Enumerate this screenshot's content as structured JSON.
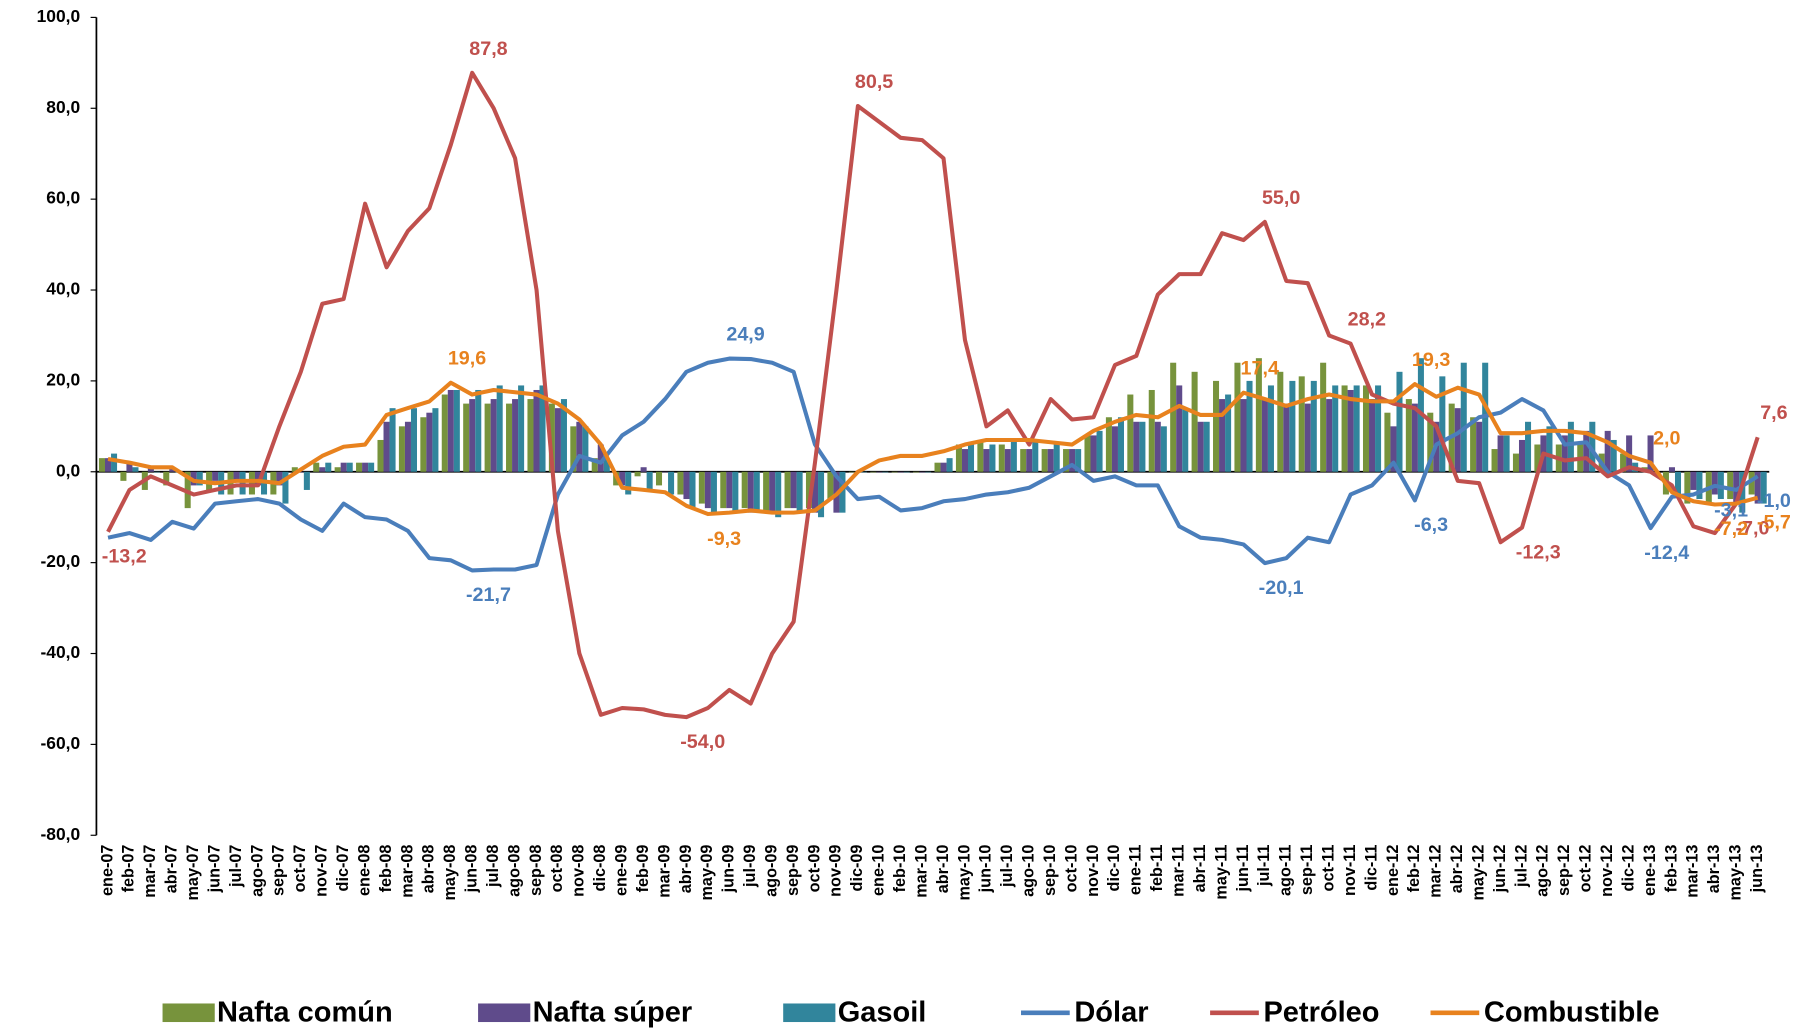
{
  "chart_data": {
    "type": "bar",
    "categories": [
      "ene-07",
      "feb-07",
      "mar-07",
      "abr-07",
      "may-07",
      "jun-07",
      "jul-07",
      "ago-07",
      "sep-07",
      "oct-07",
      "nov-07",
      "dic-07",
      "ene-08",
      "feb-08",
      "mar-08",
      "abr-08",
      "may-08",
      "jun-08",
      "jul-08",
      "ago-08",
      "sep-08",
      "oct-08",
      "nov-08",
      "dic-08",
      "ene-09",
      "feb-09",
      "mar-09",
      "abr-09",
      "may-09",
      "jun-09",
      "jul-09",
      "ago-09",
      "sep-09",
      "oct-09",
      "nov-09",
      "dic-09",
      "ene-10",
      "feb-10",
      "mar-10",
      "abr-10",
      "may-10",
      "jun-10",
      "jul-10",
      "ago-10",
      "sep-10",
      "oct-10",
      "nov-10",
      "dic-10",
      "ene-11",
      "feb-11",
      "mar-11",
      "abr-11",
      "may-11",
      "jun-11",
      "jul-11",
      "ago-11",
      "sep-11",
      "oct-11",
      "nov-11",
      "dic-11",
      "ene-12",
      "feb-12",
      "mar-12",
      "abr-12",
      "may-12",
      "jun-12",
      "jul-12",
      "ago-12",
      "sep-12",
      "oct-12",
      "nov-12",
      "dic-12",
      "ene-13",
      "feb-13",
      "mar-13",
      "abr-13",
      "may-13",
      "jun-13"
    ],
    "ylim": [
      -80,
      100
    ],
    "yticks": [
      {
        "value": -80,
        "label": "-80,0"
      },
      {
        "value": -60,
        "label": "-60,0"
      },
      {
        "value": -40,
        "label": "-40,0"
      },
      {
        "value": -20,
        "label": "-20,0"
      },
      {
        "value": 0,
        "label": "0,0"
      },
      {
        "value": 20,
        "label": "20,0"
      },
      {
        "value": 40,
        "label": "40,0"
      },
      {
        "value": 60,
        "label": "60,0"
      },
      {
        "value": 80,
        "label": "80,0"
      },
      {
        "value": 100,
        "label": "100,0"
      }
    ],
    "legend": "bottom",
    "series": [
      {
        "name": "Nafta común",
        "type": "bar",
        "color": "#77933c",
        "values": [
          3,
          -2,
          -4,
          -3,
          -8,
          -4,
          -5,
          -5,
          -5,
          1,
          2,
          1,
          2,
          7,
          10,
          12,
          17,
          15,
          15,
          15,
          16,
          15,
          10,
          3,
          -3,
          -1,
          -3,
          -5,
          -7,
          -8,
          -8,
          -9,
          -8,
          -8,
          -6,
          0,
          0,
          0,
          0,
          2,
          6,
          7,
          6,
          5,
          5,
          5,
          8,
          12,
          17,
          18,
          24,
          22,
          20,
          24,
          25,
          22,
          21,
          24,
          19,
          19,
          13,
          16,
          13,
          15,
          12,
          5,
          4,
          6,
          6,
          6,
          4,
          4,
          1,
          -5,
          -7,
          -7,
          -6,
          -5
        ]
      },
      {
        "name": "Nafta súper",
        "type": "bar",
        "color": "#5f4b8b",
        "values": [
          3,
          2,
          1,
          1,
          -3,
          -2,
          -2,
          -3,
          -3,
          0,
          1,
          2,
          2,
          11,
          11,
          13,
          18,
          16,
          16,
          16,
          18,
          14,
          11,
          6,
          -3,
          1,
          0,
          -6,
          -8,
          -8,
          -9,
          -9,
          -8,
          -9,
          -9,
          0,
          0,
          0,
          0,
          2,
          5,
          5,
          5,
          5,
          5,
          5,
          8,
          10,
          11,
          11,
          19,
          11,
          16,
          16,
          16,
          15,
          15,
          16,
          18,
          16,
          10,
          15,
          11,
          14,
          11,
          8,
          7,
          8,
          8,
          9,
          9,
          8,
          8,
          1,
          -4,
          -5,
          -7,
          -7
        ]
      },
      {
        "name": "Gasoil",
        "type": "bar",
        "color": "#31859c",
        "values": [
          4,
          1,
          0,
          0,
          -3,
          -5,
          -5,
          -5,
          -7,
          -4,
          2,
          2,
          2,
          14,
          14,
          14,
          18,
          18,
          19,
          19,
          19,
          16,
          10,
          3,
          -5,
          -4,
          -5,
          -8,
          -9,
          -9,
          -9,
          -10,
          -9,
          -10,
          -9,
          0,
          0,
          0,
          0,
          3,
          6,
          6,
          7,
          7,
          6,
          5,
          9,
          12,
          11,
          10,
          14,
          11,
          17,
          20,
          19,
          20,
          20,
          19,
          19,
          19,
          22,
          25,
          21,
          24,
          24,
          8,
          11,
          10,
          11,
          11,
          7,
          2,
          0,
          -5,
          -6,
          -6,
          -9,
          -7
        ]
      },
      {
        "name": "Dólar",
        "type": "line",
        "color": "#4a7ebb",
        "values": [
          -14.5,
          -13.5,
          -15,
          -11,
          -12.5,
          -7,
          -6.5,
          -6,
          -7,
          -10.5,
          -13,
          -7,
          -10,
          -10.5,
          -13,
          -19,
          -19.5,
          -21.7,
          -21.5,
          -21.5,
          -20.5,
          -5,
          3.5,
          2,
          8,
          11,
          16,
          22,
          24,
          24.9,
          24.8,
          24,
          22,
          6,
          -1,
          -6,
          -5.5,
          -8.5,
          -8,
          -6.5,
          -6,
          -5,
          -4.5,
          -3.5,
          -1,
          1.5,
          -2,
          -1,
          -3,
          -3,
          -12,
          -14.5,
          -15,
          -16,
          -20.1,
          -19,
          -14.5,
          -15.5,
          -5,
          -3,
          2,
          -6.3,
          6,
          8.5,
          12,
          13,
          16,
          13.5,
          6,
          6.5,
          0,
          -3,
          -12.4,
          -5.5,
          -5,
          -3.1,
          -4,
          -1
        ],
        "value_labels": [
          null,
          null,
          null,
          null,
          null,
          null,
          null,
          null,
          null,
          null,
          null,
          null,
          null,
          null,
          null,
          null,
          null,
          "-21,7",
          null,
          null,
          null,
          null,
          null,
          null,
          null,
          null,
          null,
          null,
          null,
          "24,9",
          null,
          null,
          null,
          null,
          null,
          null,
          null,
          null,
          null,
          null,
          null,
          null,
          null,
          null,
          null,
          null,
          null,
          null,
          null,
          null,
          null,
          null,
          null,
          null,
          "-20,1",
          null,
          null,
          null,
          null,
          null,
          null,
          "-6,3",
          null,
          null,
          null,
          null,
          null,
          null,
          null,
          null,
          null,
          null,
          "-12,4",
          null,
          null,
          "-3,1",
          null,
          "-1,0"
        ]
      },
      {
        "name": "Petróleo",
        "type": "line",
        "color": "#c0504d",
        "values": [
          -13.2,
          -4,
          -1,
          -3,
          -5,
          -4,
          -3,
          -3,
          10,
          22,
          37,
          38,
          59,
          45,
          53,
          58,
          72,
          87.8,
          80,
          69,
          40,
          -13,
          -40,
          -53.5,
          -52,
          -52.3,
          -53.5,
          -54,
          -52,
          -48,
          -51,
          -40,
          -33,
          2,
          40,
          80.5,
          77,
          73.5,
          73,
          69,
          29,
          10,
          13.5,
          6,
          16,
          11.5,
          12,
          23.5,
          25.5,
          39,
          43.5,
          43.5,
          52.5,
          51,
          55,
          42,
          41.5,
          30,
          28.2,
          17,
          15,
          14,
          10,
          -2,
          -2.5,
          -15.5,
          -12.3,
          4,
          2.5,
          3,
          -1,
          1,
          0,
          -3,
          -12,
          -13.5,
          -7,
          7.6
        ],
        "value_labels": [
          "-13,2",
          null,
          null,
          null,
          null,
          null,
          null,
          null,
          null,
          null,
          null,
          null,
          null,
          null,
          null,
          null,
          null,
          "87,8",
          null,
          null,
          null,
          null,
          null,
          null,
          null,
          null,
          null,
          "-54,0",
          null,
          null,
          null,
          null,
          null,
          null,
          null,
          "80,5",
          null,
          null,
          null,
          null,
          null,
          null,
          null,
          null,
          null,
          null,
          null,
          null,
          null,
          null,
          null,
          null,
          null,
          null,
          "55,0",
          null,
          null,
          null,
          "28,2",
          null,
          null,
          null,
          null,
          null,
          null,
          null,
          "-12,3",
          null,
          null,
          null,
          null,
          null,
          null,
          null,
          null,
          null,
          "-7,0",
          "7,6"
        ]
      },
      {
        "name": "Combustible",
        "type": "line",
        "color": "#e8821e",
        "values": [
          2.8,
          2,
          1,
          1,
          -2,
          -2.5,
          -2,
          -2,
          -2.5,
          0.5,
          3.5,
          5.5,
          6,
          12.5,
          14,
          15.5,
          19.6,
          17,
          18,
          17.5,
          17,
          15,
          11.5,
          6,
          -3.5,
          -4,
          -4.5,
          -7.5,
          -9.3,
          -9,
          -8.5,
          -9,
          -9,
          -8.5,
          -5,
          0,
          2.5,
          3.5,
          3.5,
          4.5,
          6,
          7,
          7,
          7,
          6.5,
          6,
          9,
          11,
          12.5,
          12,
          14.5,
          12.5,
          12.5,
          17.4,
          16,
          14.5,
          16,
          17,
          16,
          15.5,
          15.5,
          19.3,
          16.5,
          18.5,
          17,
          8.5,
          8.5,
          9,
          9,
          8.5,
          6.5,
          3.5,
          2,
          -4.5,
          -6.5,
          -7.2,
          -7,
          -5.7
        ],
        "value_labels": [
          null,
          null,
          null,
          null,
          null,
          null,
          null,
          null,
          null,
          null,
          null,
          null,
          null,
          null,
          null,
          null,
          "19,6",
          null,
          null,
          null,
          null,
          null,
          null,
          null,
          null,
          null,
          null,
          null,
          "-9,3",
          null,
          null,
          null,
          null,
          null,
          null,
          null,
          null,
          null,
          null,
          null,
          null,
          null,
          null,
          null,
          null,
          null,
          null,
          null,
          null,
          null,
          null,
          null,
          null,
          "17,4",
          null,
          null,
          null,
          null,
          null,
          null,
          null,
          "19,3",
          null,
          null,
          null,
          null,
          null,
          null,
          null,
          null,
          null,
          null,
          "2,0",
          null,
          null,
          "-7,2",
          null,
          "-5,7"
        ]
      }
    ]
  }
}
